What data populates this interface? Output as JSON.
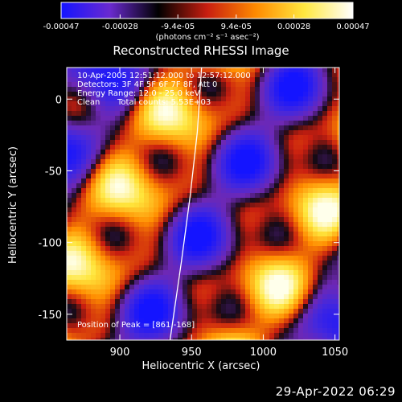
{
  "chart_data": {
    "type": "heatmap",
    "title": "Reconstructed RHESSI Image",
    "xlabel": "Heliocentric X (arcsec)",
    "ylabel": "Heliocentric Y (arcsec)",
    "xlim": [
      863,
      1053
    ],
    "ylim": [
      -168,
      22
    ],
    "x_ticks": [
      900,
      950,
      1000,
      1050
    ],
    "x_tick_labels": [
      "900",
      "950",
      "1000",
      "1050"
    ],
    "y_ticks": [
      0,
      -50,
      -100,
      -150
    ],
    "y_tick_labels": [
      "0",
      "-50",
      "-100",
      "-150"
    ],
    "colorbar": {
      "range": [
        -0.00047,
        0.00047
      ],
      "tick_values": [
        -0.00047,
        -0.00028,
        -9.4e-05,
        9.4e-05,
        0.00028,
        0.00047
      ],
      "tick_labels": [
        "-0.00047",
        "-0.00028",
        "-9.4e-05",
        "9.4e-05",
        "0.00028",
        "0.00047"
      ],
      "unit_label": "(photons cm⁻² s⁻¹ asec⁻²)",
      "colors": [
        "#1414ff",
        "#6a2ad0",
        "#000000",
        "#c81e10",
        "#ff8a00",
        "#ffe840",
        "#ffffff"
      ]
    },
    "annotations": {
      "time": "10-Apr-2005 12:51:12.000 to 12:57:12.000",
      "detectors": "Detectors: 3F 4F 5F 6F 7F 8F, Att 0",
      "energy": "Energy Range: 12.0 - 25.0 keV",
      "algorithm": "Clean",
      "counts": "Total counts: 5.53E+03",
      "peak": "Position of Peak = [861,-168]"
    },
    "limb": [
      [
        957,
        22
      ],
      [
        954,
        -23
      ],
      [
        949,
        -68
      ],
      [
        943,
        -113
      ],
      [
        935,
        -168
      ]
    ]
  },
  "timestamp": "29-Apr-2022 06:29"
}
